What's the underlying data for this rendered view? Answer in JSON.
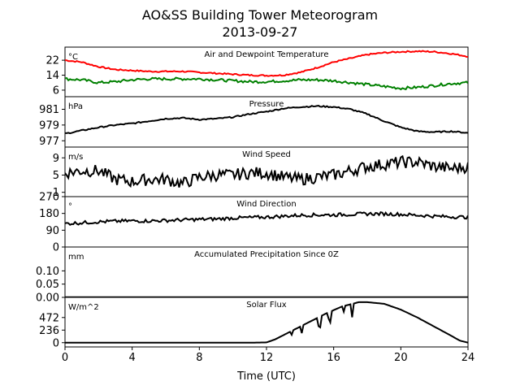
{
  "title": "AO&SS Building Tower Meteorogram",
  "subtitle": "2013-09-27",
  "xlabel": "Time (UTC)",
  "xlim": [
    0,
    24
  ],
  "xticks": [
    0,
    4,
    8,
    12,
    16,
    20,
    24
  ],
  "colors": {
    "temperature": "#ff0000",
    "dewpoint": "#008000",
    "black": "#000000"
  },
  "chart_data": [
    {
      "type": "line",
      "title": "Air and Dewpoint Temperature",
      "ylabel": "°C",
      "ylim": [
        2.5,
        29
      ],
      "yticks": [
        6,
        14,
        22
      ],
      "series": [
        {
          "key": "temperature",
          "color": "#ff0000",
          "x": [
            0,
            1,
            2,
            3,
            4,
            5,
            6,
            7,
            8,
            9,
            10,
            11,
            12,
            13,
            14,
            15,
            16,
            17,
            18,
            19,
            20,
            21,
            22,
            23,
            24
          ],
          "y": [
            22,
            21,
            18.5,
            17,
            16.5,
            16,
            16,
            16,
            15.5,
            15,
            14.5,
            14,
            13.8,
            14,
            15.5,
            18,
            21,
            23,
            25,
            26,
            26.5,
            26.8,
            26.5,
            25.5,
            24
          ]
        },
        {
          "key": "dewpoint",
          "color": "#008000",
          "x": [
            0,
            1,
            2,
            3,
            4,
            5,
            6,
            7,
            8,
            9,
            10,
            11,
            12,
            13,
            14,
            15,
            16,
            17,
            18,
            19,
            20,
            21,
            22,
            23,
            24
          ],
          "y": [
            12,
            11.5,
            10,
            10.5,
            11.5,
            12,
            12,
            12,
            12,
            11.5,
            11,
            10.5,
            10.5,
            11,
            11.5,
            11.5,
            11,
            10,
            9,
            8,
            7,
            7.5,
            8.5,
            9.5,
            10
          ]
        }
      ]
    },
    {
      "type": "line",
      "title": "Pressure",
      "ylabel": "hPa",
      "ylim": [
        976.2,
        982.6
      ],
      "yticks": [
        977,
        979,
        981
      ],
      "series": [
        {
          "key": "pressure",
          "color": "#000000",
          "x": [
            0,
            1,
            2,
            3,
            4,
            5,
            6,
            7,
            8,
            9,
            10,
            11,
            12,
            13,
            14,
            15,
            16,
            17,
            18,
            19,
            20,
            21,
            22,
            23,
            24
          ],
          "y": [
            977.9,
            978.3,
            978.7,
            979,
            979.2,
            979.5,
            979.8,
            979.9,
            979.7,
            979.8,
            980,
            980.4,
            980.7,
            981.1,
            981.3,
            981.4,
            981.3,
            981,
            980.4,
            979.5,
            978.7,
            978.2,
            978.1,
            978.2,
            978
          ]
        }
      ]
    },
    {
      "type": "line",
      "title": "Wind Speed",
      "ylabel": "m/s",
      "ylim": [
        0,
        11.5
      ],
      "yticks": [
        1,
        5,
        9
      ],
      "series": [
        {
          "key": "wind_speed",
          "color": "#000000",
          "x": [
            0,
            1,
            2,
            3,
            4,
            5,
            6,
            7,
            8,
            9,
            10,
            11,
            12,
            13,
            14,
            15,
            16,
            17,
            18,
            19,
            20,
            21,
            22,
            23,
            24
          ],
          "y": [
            5.5,
            6,
            6,
            4,
            3.5,
            4,
            4,
            3,
            4.5,
            5,
            5,
            5.5,
            5.5,
            4.5,
            4,
            4.5,
            5,
            6,
            7,
            7.5,
            8,
            8,
            7,
            6.5,
            7
          ]
        }
      ]
    },
    {
      "type": "line",
      "title": "Wind Direction",
      "ylabel": "°",
      "ylim": [
        0,
        270
      ],
      "yticks": [
        0,
        90,
        180,
        270
      ],
      "series": [
        {
          "key": "wind_direction",
          "color": "#000000",
          "x": [
            0,
            1,
            2,
            3,
            4,
            5,
            6,
            7,
            8,
            9,
            10,
            11,
            12,
            13,
            14,
            15,
            16,
            17,
            18,
            19,
            20,
            21,
            22,
            23,
            24
          ],
          "y": [
            125,
            130,
            135,
            138,
            140,
            140,
            142,
            145,
            148,
            150,
            155,
            158,
            160,
            165,
            170,
            172,
            172,
            175,
            178,
            178,
            175,
            170,
            165,
            162,
            160
          ]
        }
      ]
    },
    {
      "type": "line",
      "title": "Accumulated Precipitation Since 0Z",
      "ylabel": "mm",
      "ylim": [
        0,
        0.19
      ],
      "yticks": [
        0.0,
        0.05,
        0.1
      ],
      "ytick_labels": [
        "0.00",
        "0.05",
        "0.10"
      ],
      "series": [
        {
          "key": "precip",
          "color": "#000000",
          "x": [
            0,
            24
          ],
          "y": [
            0,
            0
          ]
        }
      ]
    },
    {
      "type": "line",
      "title": "Solar Flux",
      "ylabel": "W/m^2",
      "ylim": [
        -80,
        850
      ],
      "yticks": [
        0,
        236,
        472
      ],
      "series": [
        {
          "key": "solar",
          "color": "#000000",
          "x": [
            0,
            11,
            12,
            12.5,
            13,
            13.5,
            14,
            14.5,
            15,
            15.5,
            16,
            16.5,
            17,
            17.5,
            18,
            19,
            20,
            21,
            22,
            23,
            23.5,
            24
          ],
          "y": [
            0,
            0,
            5,
            60,
            140,
            220,
            300,
            380,
            460,
            540,
            610,
            680,
            720,
            760,
            760,
            730,
            620,
            470,
            300,
            130,
            40,
            0
          ]
        }
      ]
    }
  ]
}
